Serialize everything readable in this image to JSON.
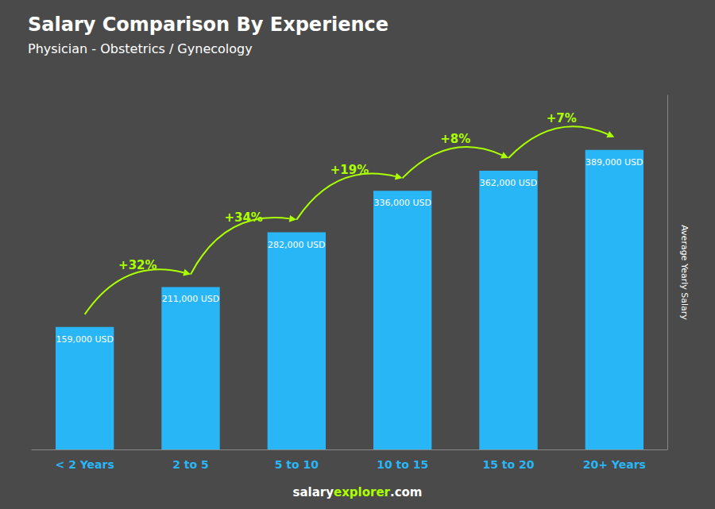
{
  "chart_data": {
    "type": "bar",
    "title": "Salary Comparison By Experience",
    "subtitle": "Physician - Obstetrics / Gynecology",
    "ylabel": "Average Yearly Salary",
    "categories": [
      "< 2 Years",
      "2 to 5",
      "5 to 10",
      "10 to 15",
      "15 to 20",
      "20+ Years"
    ],
    "values": [
      159000,
      211000,
      282000,
      336000,
      362000,
      389000
    ],
    "value_labels": [
      "159,000 USD",
      "211,000 USD",
      "282,000 USD",
      "336,000 USD",
      "362,000 USD",
      "389,000 USD"
    ],
    "data_labels": true,
    "color": "#29b6f6",
    "ylim": [
      0,
      460000
    ],
    "grid": false,
    "tick_labels": "x",
    "annotations": {
      "labels": [
        "+32%",
        "+34%",
        "+19%",
        "+8%",
        "+7%"
      ],
      "color": "#aaff00"
    },
    "footer": [
      {
        "text": "salary",
        "color": "#ffffff"
      },
      {
        "text": "explorer",
        "color": "#aaff00"
      },
      {
        "text": ".com",
        "color": "#ffffff"
      }
    ],
    "background_color": "#4a4a4a"
  }
}
